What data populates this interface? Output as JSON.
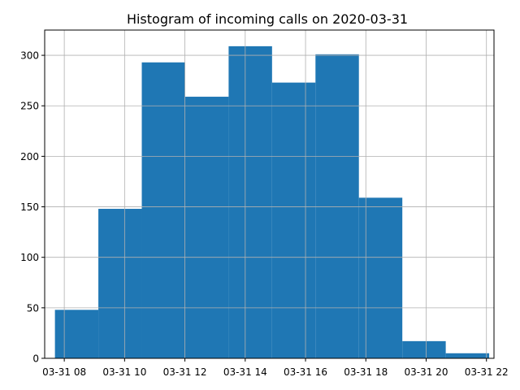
{
  "chart_data": {
    "type": "bar",
    "title": "Histogram of incoming calls on 2020-03-31",
    "xlabel": "",
    "ylabel": "",
    "bar_color": "#1f77b4",
    "grid": true,
    "x_ticks": [
      {
        "hour": 8,
        "label": "03-31 08"
      },
      {
        "hour": 10,
        "label": "03-31 10"
      },
      {
        "hour": 12,
        "label": "03-31 12"
      },
      {
        "hour": 14,
        "label": "03-31 14"
      },
      {
        "hour": 16,
        "label": "03-31 16"
      },
      {
        "hour": 18,
        "label": "03-31 18"
      },
      {
        "hour": 20,
        "label": "03-31 20"
      },
      {
        "hour": 22,
        "label": "03-31 22"
      }
    ],
    "y_ticks": [
      0,
      50,
      100,
      150,
      200,
      250,
      300
    ],
    "xlim_hours": [
      7.35,
      22.25
    ],
    "ylim": [
      0,
      325
    ],
    "bins": [
      {
        "start": 7.69,
        "end": 9.13,
        "count": 48
      },
      {
        "start": 9.13,
        "end": 10.57,
        "count": 148
      },
      {
        "start": 10.57,
        "end": 12.01,
        "count": 293
      },
      {
        "start": 12.01,
        "end": 13.45,
        "count": 259
      },
      {
        "start": 13.45,
        "end": 14.89,
        "count": 309
      },
      {
        "start": 14.89,
        "end": 16.33,
        "count": 273
      },
      {
        "start": 16.33,
        "end": 17.77,
        "count": 301
      },
      {
        "start": 17.77,
        "end": 19.21,
        "count": 159
      },
      {
        "start": 19.21,
        "end": 20.65,
        "count": 17
      },
      {
        "start": 20.65,
        "end": 22.09,
        "count": 5
      }
    ]
  }
}
